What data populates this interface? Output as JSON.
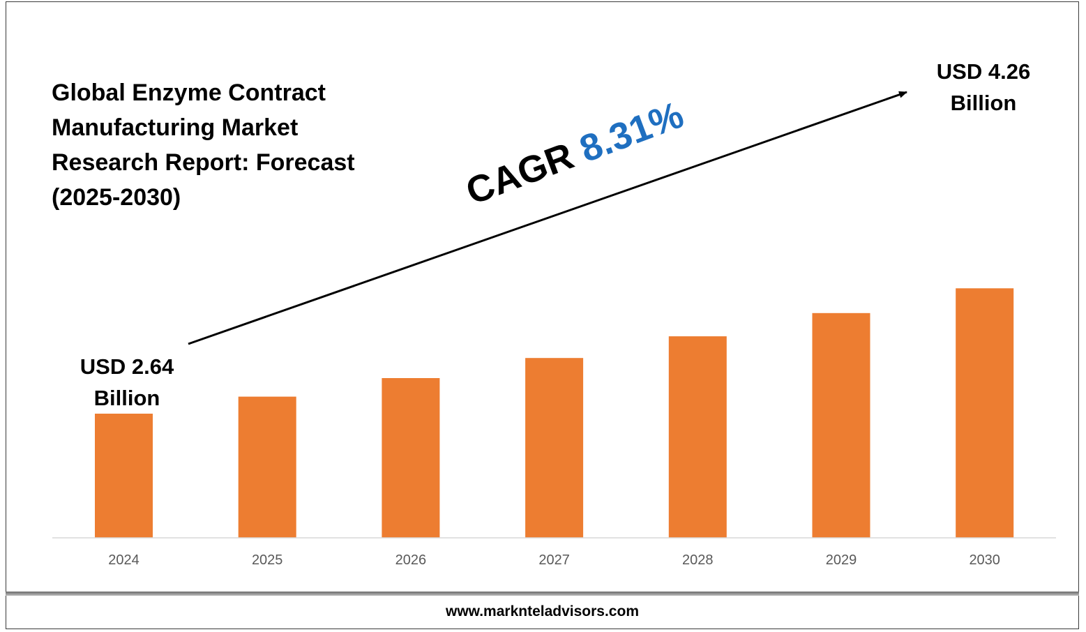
{
  "title_lines": [
    "Global Enzyme Contract",
    "Manufacturing Market",
    "Research Report: Forecast",
    "(2025-2030)"
  ],
  "cagr": {
    "label": "CAGR",
    "value": "8.31%"
  },
  "callouts": {
    "start": {
      "line1": "USD 2.64",
      "line2": "Billion"
    },
    "end": {
      "line1": "USD 4.26",
      "line2": "Billion"
    }
  },
  "footer": {
    "website": "www.marknteladvisors.com"
  },
  "colors": {
    "bar": "#ED7D31",
    "cagr_value": "#1F6FC0",
    "axis": "#D9D9D9",
    "tick_label": "#595959"
  },
  "chart_data": {
    "type": "bar",
    "categories": [
      "2024",
      "2025",
      "2026",
      "2027",
      "2028",
      "2029",
      "2030"
    ],
    "values": [
      2.64,
      2.86,
      3.1,
      3.36,
      3.64,
      3.94,
      4.26
    ],
    "ylabel": "",
    "xlabel": "",
    "unit": "USD Billion",
    "grid": false,
    "annotations": [
      "USD 2.64 Billion",
      "USD 4.26 Billion",
      "CAGR 8.31%"
    ]
  }
}
